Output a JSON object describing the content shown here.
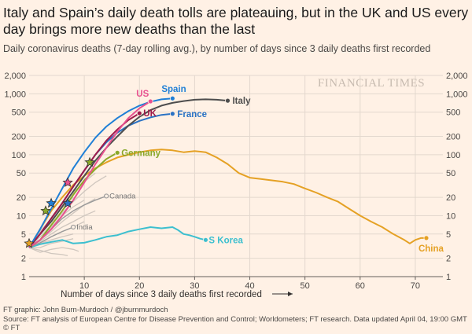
{
  "header": {
    "title": "Italy and Spain’s daily death tolls are plateauing, but in the UK and US every day brings more new deaths than the last",
    "subtitle": "Daily coronavirus deaths (7-day rolling avg.), by number of days since 3 daily deaths first recorded"
  },
  "footer": {
    "credit": "FT graphic: John Burn-Murdoch / @jburnmurdoch",
    "source": "Source: FT analysis of European Centre for Disease Prevention and Control; Worldometers; FT research. Data updated April 04, 19:00 GMT",
    "copyright": "© FT"
  },
  "chart_data": {
    "type": "line",
    "scale": "log",
    "xlabel": "Number of days since 3 daily deaths first recorded",
    "xlim": [
      0,
      75
    ],
    "ylim": [
      1,
      2000
    ],
    "x_ticks": [
      10,
      20,
      30,
      40,
      50,
      60,
      70
    ],
    "y_ticks": [
      1,
      2,
      5,
      10,
      20,
      50,
      100,
      200,
      500,
      1000,
      2000
    ],
    "y_tick_labels": [
      "1",
      "2",
      "5",
      "10",
      "20",
      "50",
      "100",
      "200",
      "500",
      "1,000",
      "2,000"
    ],
    "grid": true,
    "watermark": "FINANCIAL TIMES",
    "series": [
      {
        "name": "Italy",
        "color": "#4d4d4d",
        "label_pos": "right",
        "marker": "dot",
        "points": [
          [
            0,
            3
          ],
          [
            2,
            5
          ],
          [
            4,
            8
          ],
          [
            6,
            14
          ],
          [
            8,
            25
          ],
          [
            10,
            45
          ],
          [
            12,
            80
          ],
          [
            14,
            130
          ],
          [
            16,
            200
          ],
          [
            18,
            300
          ],
          [
            20,
            420
          ],
          [
            22,
            540
          ],
          [
            24,
            640
          ],
          [
            26,
            710
          ],
          [
            28,
            760
          ],
          [
            30,
            800
          ],
          [
            32,
            810
          ],
          [
            34,
            800
          ],
          [
            36,
            770
          ]
        ]
      },
      {
        "name": "Spain",
        "color": "#1f7fd6",
        "label_pos": "above",
        "marker": "dot",
        "points": [
          [
            0,
            3
          ],
          [
            2,
            6
          ],
          [
            4,
            13
          ],
          [
            6,
            28
          ],
          [
            8,
            60
          ],
          [
            10,
            110
          ],
          [
            12,
            190
          ],
          [
            14,
            290
          ],
          [
            16,
            400
          ],
          [
            18,
            520
          ],
          [
            20,
            640
          ],
          [
            22,
            740
          ],
          [
            24,
            810
          ],
          [
            26,
            840
          ]
        ]
      },
      {
        "name": "US",
        "color": "#e8518f",
        "label_pos": "above",
        "marker": "dot",
        "points": [
          [
            0,
            3
          ],
          [
            2,
            4
          ],
          [
            4,
            6
          ],
          [
            6,
            10
          ],
          [
            8,
            18
          ],
          [
            10,
            35
          ],
          [
            12,
            70
          ],
          [
            14,
            130
          ],
          [
            16,
            240
          ],
          [
            18,
            400
          ],
          [
            20,
            580
          ],
          [
            22,
            750
          ]
        ]
      },
      {
        "name": "UK",
        "color": "#9e1a4a",
        "label_pos": "right",
        "marker": "dot",
        "points": [
          [
            0,
            3
          ],
          [
            2,
            5
          ],
          [
            4,
            9
          ],
          [
            6,
            16
          ],
          [
            8,
            30
          ],
          [
            10,
            55
          ],
          [
            12,
            100
          ],
          [
            14,
            170
          ],
          [
            16,
            260
          ],
          [
            18,
            370
          ],
          [
            20,
            480
          ]
        ]
      },
      {
        "name": "France",
        "color": "#2a72c4",
        "label_pos": "right",
        "marker": "dot",
        "points": [
          [
            0,
            3
          ],
          [
            2,
            5
          ],
          [
            4,
            9
          ],
          [
            6,
            16
          ],
          [
            8,
            30
          ],
          [
            10,
            55
          ],
          [
            12,
            100
          ],
          [
            14,
            160
          ],
          [
            16,
            230
          ],
          [
            18,
            300
          ],
          [
            20,
            360
          ],
          [
            22,
            410
          ],
          [
            24,
            450
          ],
          [
            26,
            470
          ]
        ]
      },
      {
        "name": "Germany",
        "color": "#8aa829",
        "label_pos": "right",
        "marker": "dot",
        "points": [
          [
            0,
            3
          ],
          [
            2,
            4
          ],
          [
            4,
            7
          ],
          [
            6,
            12
          ],
          [
            8,
            22
          ],
          [
            10,
            38
          ],
          [
            12,
            58
          ],
          [
            14,
            85
          ],
          [
            16,
            108
          ]
        ]
      },
      {
        "name": "China",
        "color": "#e5a124",
        "label_pos": "below",
        "marker": "dot",
        "points": [
          [
            0,
            3
          ],
          [
            2,
            6
          ],
          [
            4,
            12
          ],
          [
            6,
            20
          ],
          [
            8,
            32
          ],
          [
            10,
            45
          ],
          [
            12,
            60
          ],
          [
            14,
            75
          ],
          [
            16,
            90
          ],
          [
            18,
            100
          ],
          [
            20,
            110
          ],
          [
            22,
            118
          ],
          [
            24,
            122
          ],
          [
            26,
            118
          ],
          [
            28,
            110
          ],
          [
            30,
            115
          ],
          [
            32,
            110
          ],
          [
            34,
            90
          ],
          [
            36,
            70
          ],
          [
            38,
            50
          ],
          [
            40,
            42
          ],
          [
            42,
            40
          ],
          [
            44,
            38
          ],
          [
            46,
            36
          ],
          [
            48,
            33
          ],
          [
            50,
            28
          ],
          [
            52,
            24
          ],
          [
            54,
            20
          ],
          [
            56,
            17
          ],
          [
            58,
            13
          ],
          [
            60,
            10
          ],
          [
            62,
            8
          ],
          [
            64,
            6.5
          ],
          [
            66,
            5
          ],
          [
            68,
            4
          ],
          [
            69,
            3.5
          ],
          [
            70,
            4
          ],
          [
            71,
            4.3
          ],
          [
            72,
            4.3
          ]
        ]
      },
      {
        "name": "S Korea",
        "color": "#3cbfcf",
        "label_pos": "right",
        "marker": "dot",
        "points": [
          [
            0,
            3
          ],
          [
            2,
            3.4
          ],
          [
            4,
            3.7
          ],
          [
            6,
            4
          ],
          [
            8,
            3.5
          ],
          [
            10,
            3.6
          ],
          [
            12,
            4
          ],
          [
            14,
            4.5
          ],
          [
            16,
            4.8
          ],
          [
            18,
            5.5
          ],
          [
            20,
            6
          ],
          [
            22,
            6.5
          ],
          [
            24,
            6.2
          ],
          [
            26,
            6.5
          ],
          [
            27,
            5.8
          ],
          [
            28,
            5
          ],
          [
            29,
            4.8
          ],
          [
            30,
            4.5
          ],
          [
            31,
            4.2
          ],
          [
            32,
            4
          ]
        ]
      },
      {
        "name": "Canada",
        "color": "#9a9a9a",
        "label_pos": "right",
        "marker": "ring",
        "points": [
          [
            0,
            3
          ],
          [
            2,
            4
          ],
          [
            4,
            6
          ],
          [
            6,
            9
          ],
          [
            8,
            12
          ],
          [
            10,
            15
          ],
          [
            12,
            18
          ],
          [
            14,
            21
          ]
        ]
      },
      {
        "name": "India",
        "color": "#9a9a9a",
        "label_pos": "right",
        "marker": "ring",
        "points": [
          [
            0,
            3
          ],
          [
            2,
            3.6
          ],
          [
            4,
            4.5
          ],
          [
            6,
            5.5
          ],
          [
            8,
            6.5
          ]
        ]
      }
    ],
    "background_series_color": "#cfc6be",
    "background_series": [
      [
        [
          0,
          3
        ],
        [
          2,
          4.5
        ],
        [
          4,
          7
        ],
        [
          6,
          11
        ],
        [
          8,
          17
        ],
        [
          10,
          25
        ],
        [
          12,
          35
        ],
        [
          14,
          45
        ]
      ],
      [
        [
          0,
          3
        ],
        [
          2,
          4
        ],
        [
          4,
          5.5
        ],
        [
          6,
          8
        ],
        [
          8,
          11
        ],
        [
          10,
          15
        ],
        [
          12,
          19
        ]
      ],
      [
        [
          0,
          3
        ],
        [
          2,
          3.5
        ],
        [
          4,
          4.5
        ],
        [
          6,
          5.5
        ],
        [
          8,
          6.5
        ],
        [
          10,
          8
        ]
      ],
      [
        [
          0,
          3
        ],
        [
          2,
          3
        ],
        [
          4,
          3.5
        ],
        [
          6,
          3.8
        ],
        [
          8,
          4.2
        ]
      ],
      [
        [
          0,
          3
        ],
        [
          2,
          2.5
        ],
        [
          4,
          2.8
        ],
        [
          6,
          3
        ],
        [
          8,
          2.8
        ],
        [
          9,
          2.6
        ]
      ],
      [
        [
          0,
          3
        ],
        [
          2,
          5
        ],
        [
          4,
          8
        ],
        [
          6,
          14
        ],
        [
          8,
          20
        ]
      ],
      [
        [
          0,
          3
        ],
        [
          2,
          4
        ],
        [
          4,
          6.5
        ],
        [
          6,
          10
        ],
        [
          8,
          14
        ],
        [
          10,
          18
        ]
      ],
      [
        [
          0,
          3
        ],
        [
          2,
          3.5
        ],
        [
          4,
          4
        ],
        [
          6,
          4.5
        ],
        [
          8,
          5
        ]
      ],
      [
        [
          0,
          3
        ],
        [
          2,
          5.5
        ],
        [
          4,
          9
        ],
        [
          6,
          15
        ],
        [
          8,
          24
        ],
        [
          10,
          36
        ],
        [
          12,
          50
        ]
      ],
      [
        [
          0,
          3
        ],
        [
          2,
          2.7
        ],
        [
          4,
          2.4
        ],
        [
          6,
          2.3
        ],
        [
          7,
          2.2
        ]
      ],
      [
        [
          0,
          3
        ],
        [
          2,
          3.8
        ],
        [
          4,
          5
        ],
        [
          6,
          6.5
        ],
        [
          8,
          8
        ],
        [
          10,
          10
        ],
        [
          12,
          12
        ]
      ]
    ],
    "star_markers": [
      [
        0,
        3.5
      ],
      [
        3,
        12
      ],
      [
        4,
        16
      ],
      [
        7,
        16
      ],
      [
        7,
        35
      ],
      [
        11,
        75
      ]
    ]
  }
}
